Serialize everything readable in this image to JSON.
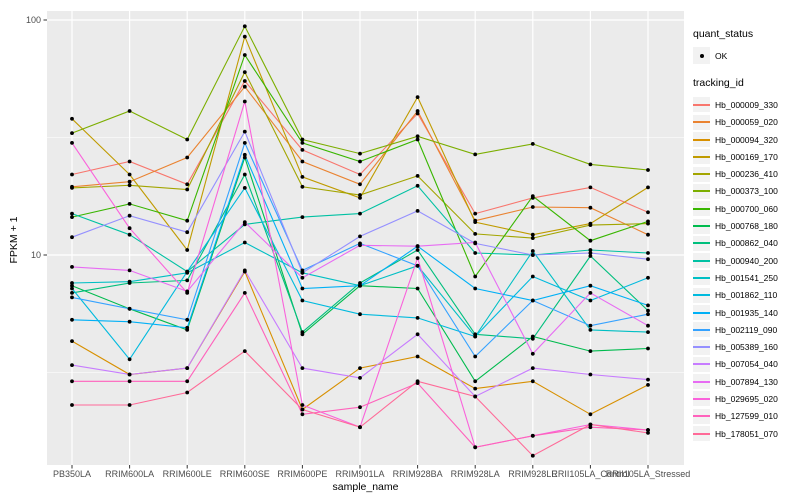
{
  "colors": {
    "background": "#FFFFFF",
    "panel_bg": "#EBEBEB",
    "grid": "#FFFFFF",
    "axis_text": "#4D4D4D",
    "tick_mark": "#333333",
    "legend_key_bg": "#F2F2F2",
    "point": "#000000"
  },
  "legend": {
    "quant_status_title": "quant_status",
    "quant_status_items": [
      {
        "label": "OK"
      }
    ],
    "tracking_id_title": "tracking_id"
  },
  "chart_data": {
    "type": "line",
    "title": "",
    "xlabel": "sample_name",
    "ylabel": "FPKM + 1",
    "y_scale": "log10",
    "ylim": [
      1.15,
      110
    ],
    "y_major_ticks": [
      100,
      10
    ],
    "y_tick_labels": [
      "100",
      "10"
    ],
    "y_minor_ticks": [
      31.62,
      3.162
    ],
    "grid": true,
    "legend_position": "right",
    "point_shape": "filled-circle",
    "categories": [
      "PB350LA",
      "RRIM600LA",
      "RRIM600LE",
      "RRIM600SE",
      "RRIM600PE",
      "RRIM901LA",
      "RRIM928BA",
      "RRIM928LA",
      "RRIM928LE",
      "RRII105LA_Control",
      "RRII105LA_Stressed"
    ],
    "series": [
      {
        "name": "Hb_000009_330",
        "color": "#F8766D",
        "values": [
          22,
          25,
          20,
          55,
          28,
          22,
          40,
          15,
          17.5,
          19.4,
          15.2
        ]
      },
      {
        "name": "Hb_000059_020",
        "color": "#EA8331",
        "values": [
          19.5,
          20.5,
          26,
          52,
          25,
          20,
          41,
          14,
          16,
          15.9,
          12.2
        ]
      },
      {
        "name": "Hb_000094_320",
        "color": "#D89000",
        "values": [
          4.3,
          3.1,
          3.3,
          8.5,
          2.2,
          3.3,
          3.7,
          2.7,
          2.9,
          2.1,
          2.8
        ]
      },
      {
        "name": "Hb_000169_170",
        "color": "#C09B00",
        "values": [
          38,
          22,
          10.5,
          85,
          21.5,
          17.5,
          47,
          13.8,
          12.2,
          13.6,
          19.4
        ]
      },
      {
        "name": "Hb_000236_410",
        "color": "#A3A500",
        "values": [
          19.3,
          19.8,
          19,
          60,
          19.5,
          18,
          21.7,
          12.3,
          11.8,
          13.4,
          13.6
        ]
      },
      {
        "name": "Hb_000373_100",
        "color": "#7CAE00",
        "values": [
          33,
          41,
          31,
          94,
          31,
          27,
          32,
          26.8,
          29.7,
          24.3,
          23
        ]
      },
      {
        "name": "Hb_000700_060",
        "color": "#39B600",
        "values": [
          14.5,
          16.5,
          14,
          71,
          30,
          25,
          31,
          8.1,
          17.8,
          11.5,
          13.9
        ]
      },
      {
        "name": "Hb_000768_180",
        "color": "#00BB4E",
        "values": [
          7.4,
          5.9,
          4.8,
          26,
          4.6,
          7.4,
          7.2,
          2.9,
          4.5,
          3.9,
          4
        ]
      },
      {
        "name": "Hb_000862_040",
        "color": "#00BF7D",
        "values": [
          6.9,
          7.6,
          7.8,
          22,
          4.7,
          7.6,
          10.5,
          4.6,
          4.4,
          9.9,
          5.8
        ]
      },
      {
        "name": "Hb_000940_200",
        "color": "#00C1A3",
        "values": [
          15,
          12.2,
          8.5,
          13.5,
          14.5,
          15,
          19.7,
          10.2,
          10,
          10.5,
          10.2
        ]
      },
      {
        "name": "Hb_001541_250",
        "color": "#00BFC4",
        "values": [
          7.6,
          7.7,
          8.4,
          11.3,
          8.4,
          7.4,
          9,
          4.5,
          10.4,
          4.8,
          4.7
        ]
      },
      {
        "name": "Hb_001862_110",
        "color": "#00BADE",
        "values": [
          7.2,
          3.6,
          8.5,
          19.3,
          6.4,
          5.6,
          5.4,
          4.5,
          8.1,
          6.4,
          8
        ]
      },
      {
        "name": "Hb_001935_140",
        "color": "#00B0F6",
        "values": [
          5.3,
          5.2,
          4.9,
          26.7,
          7.2,
          7.4,
          10.9,
          7.2,
          6.4,
          7.4,
          6.1
        ]
      },
      {
        "name": "Hb_002119_090",
        "color": "#35A2FF",
        "values": [
          6.6,
          5.9,
          5.3,
          30,
          8.6,
          11.2,
          9,
          3.7,
          6.4,
          5,
          5.6
        ]
      },
      {
        "name": "Hb_005389_160",
        "color": "#9590FF",
        "values": [
          11.9,
          14.7,
          12.5,
          33.5,
          8.4,
          12,
          15.4,
          11.2,
          10,
          10.2,
          9.6
        ]
      },
      {
        "name": "Hb_007054_040",
        "color": "#C77CFF",
        "values": [
          3.4,
          3.1,
          3.3,
          8.6,
          3.3,
          3,
          4.6,
          2.5,
          3.3,
          3.1,
          2.95
        ]
      },
      {
        "name": "Hb_007894_130",
        "color": "#E76BF3",
        "values": [
          8.9,
          8.6,
          7,
          13.8,
          8,
          11,
          10.9,
          11.3,
          3.8,
          6.9,
          5
        ]
      },
      {
        "name": "Hb_029695_020",
        "color": "#FA62DB",
        "values": [
          30,
          13,
          6.9,
          45,
          2.3,
          1.85,
          9.7,
          1.52,
          1.7,
          1.9,
          1.8
        ]
      },
      {
        "name": "Hb_127599_010",
        "color": "#FF62BC",
        "values": [
          2.9,
          2.9,
          2.9,
          6.9,
          2.1,
          2.25,
          2.85,
          1.52,
          1.7,
          1.85,
          1.8
        ]
      },
      {
        "name": "Hb_178051_070",
        "color": "#FF6A98",
        "values": [
          2.3,
          2.3,
          2.6,
          3.9,
          2.2,
          1.85,
          2.9,
          2.5,
          1.4,
          1.9,
          1.75
        ]
      }
    ]
  }
}
